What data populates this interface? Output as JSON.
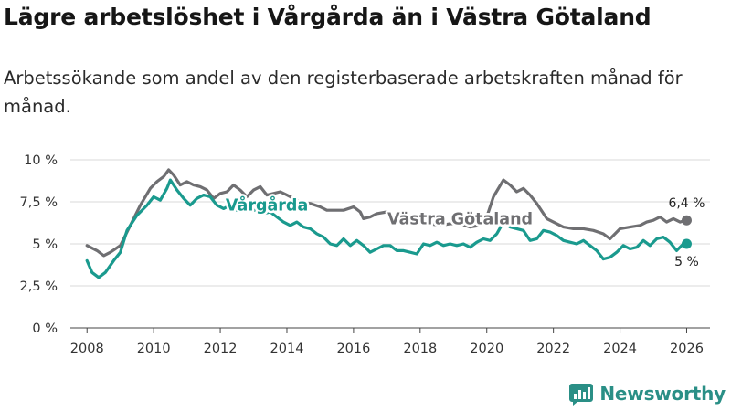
{
  "title": "Lägre arbetslöshet i Vårgårda än i Västra Götaland",
  "subtitle": "Arbetssökande som andel av den registerbaserade arbetskraften månad för månad.",
  "brand": {
    "name": "Newsworthy",
    "color": "#2a8f86"
  },
  "chart_data": {
    "type": "line",
    "ylim": [
      0,
      10
    ],
    "xlim": [
      2007.5,
      2026.7
    ],
    "yticks": [
      0,
      2.5,
      5,
      7.5,
      10
    ],
    "ytick_labels": [
      "0 %",
      "2,5 %",
      "5 %",
      "7,5 %",
      "10 %"
    ],
    "xticks": [
      2008,
      2010,
      2012,
      2014,
      2016,
      2018,
      2020,
      2022,
      2024,
      2026
    ],
    "xtick_labels": [
      "2008",
      "2010",
      "2012",
      "2014",
      "2016",
      "2018",
      "2020",
      "2022",
      "2024",
      "2026"
    ],
    "grid": true,
    "series": [
      {
        "name": "Västra Götaland",
        "color": "#6f6f72",
        "end_label": "6,4 %",
        "points": [
          [
            2008.0,
            4.9
          ],
          [
            2008.3,
            4.6
          ],
          [
            2008.5,
            4.3
          ],
          [
            2008.7,
            4.5
          ],
          [
            2009.0,
            4.9
          ],
          [
            2009.3,
            6.1
          ],
          [
            2009.6,
            7.3
          ],
          [
            2009.9,
            8.3
          ],
          [
            2010.1,
            8.7
          ],
          [
            2010.3,
            9.0
          ],
          [
            2010.45,
            9.4
          ],
          [
            2010.6,
            9.1
          ],
          [
            2010.8,
            8.5
          ],
          [
            2011.0,
            8.7
          ],
          [
            2011.2,
            8.5
          ],
          [
            2011.4,
            8.4
          ],
          [
            2011.6,
            8.2
          ],
          [
            2011.8,
            7.7
          ],
          [
            2012.0,
            8.0
          ],
          [
            2012.2,
            8.1
          ],
          [
            2012.4,
            8.5
          ],
          [
            2012.6,
            8.2
          ],
          [
            2012.8,
            7.8
          ],
          [
            2013.0,
            8.2
          ],
          [
            2013.2,
            8.4
          ],
          [
            2013.4,
            7.9
          ],
          [
            2013.6,
            8.0
          ],
          [
            2013.8,
            8.1
          ],
          [
            2014.0,
            7.9
          ],
          [
            2014.2,
            7.7
          ],
          [
            2014.4,
            7.5
          ],
          [
            2014.7,
            7.4
          ],
          [
            2015.0,
            7.2
          ],
          [
            2015.2,
            7.0
          ],
          [
            2015.4,
            7.0
          ],
          [
            2015.7,
            7.0
          ],
          [
            2016.0,
            7.2
          ],
          [
            2016.2,
            6.9
          ],
          [
            2016.3,
            6.5
          ],
          [
            2016.5,
            6.6
          ],
          [
            2016.7,
            6.8
          ],
          [
            2017.0,
            6.9
          ],
          [
            2017.2,
            6.6
          ],
          [
            2017.4,
            6.4
          ],
          [
            2017.6,
            6.3
          ],
          [
            2018.0,
            6.3
          ],
          [
            2018.3,
            6.2
          ],
          [
            2018.6,
            6.1
          ],
          [
            2018.9,
            6.2
          ],
          [
            2019.2,
            6.2
          ],
          [
            2019.5,
            6.0
          ],
          [
            2019.8,
            6.1
          ],
          [
            2020.0,
            6.6
          ],
          [
            2020.2,
            7.8
          ],
          [
            2020.5,
            8.8
          ],
          [
            2020.7,
            8.5
          ],
          [
            2020.9,
            8.1
          ],
          [
            2021.1,
            8.3
          ],
          [
            2021.3,
            7.9
          ],
          [
            2021.5,
            7.4
          ],
          [
            2021.8,
            6.5
          ],
          [
            2022.0,
            6.3
          ],
          [
            2022.3,
            6.0
          ],
          [
            2022.6,
            5.9
          ],
          [
            2022.9,
            5.9
          ],
          [
            2023.2,
            5.8
          ],
          [
            2023.5,
            5.6
          ],
          [
            2023.7,
            5.3
          ],
          [
            2024.0,
            5.9
          ],
          [
            2024.3,
            6.0
          ],
          [
            2024.6,
            6.1
          ],
          [
            2024.8,
            6.3
          ],
          [
            2025.0,
            6.4
          ],
          [
            2025.2,
            6.6
          ],
          [
            2025.4,
            6.3
          ],
          [
            2025.6,
            6.5
          ],
          [
            2025.8,
            6.3
          ],
          [
            2026.0,
            6.4
          ]
        ]
      },
      {
        "name": "Vårgårda",
        "color": "#1a9a8e",
        "end_label": "5 %",
        "points": [
          [
            2008.0,
            4.0
          ],
          [
            2008.15,
            3.3
          ],
          [
            2008.35,
            3.0
          ],
          [
            2008.55,
            3.3
          ],
          [
            2008.8,
            4.0
          ],
          [
            2009.0,
            4.5
          ],
          [
            2009.2,
            5.8
          ],
          [
            2009.5,
            6.7
          ],
          [
            2009.8,
            7.3
          ],
          [
            2010.0,
            7.8
          ],
          [
            2010.2,
            7.6
          ],
          [
            2010.4,
            8.3
          ],
          [
            2010.5,
            8.8
          ],
          [
            2010.7,
            8.2
          ],
          [
            2010.9,
            7.7
          ],
          [
            2011.1,
            7.3
          ],
          [
            2011.3,
            7.7
          ],
          [
            2011.5,
            7.9
          ],
          [
            2011.7,
            7.8
          ],
          [
            2011.9,
            7.3
          ],
          [
            2012.1,
            7.1
          ],
          [
            2012.3,
            7.3
          ],
          [
            2012.5,
            7.0
          ],
          [
            2012.7,
            7.2
          ],
          [
            2012.9,
            7.0
          ],
          [
            2013.1,
            7.0
          ],
          [
            2013.3,
            6.8
          ],
          [
            2013.5,
            6.9
          ],
          [
            2013.7,
            6.6
          ],
          [
            2013.9,
            6.3
          ],
          [
            2014.1,
            6.1
          ],
          [
            2014.3,
            6.3
          ],
          [
            2014.5,
            6.0
          ],
          [
            2014.7,
            5.9
          ],
          [
            2014.9,
            5.6
          ],
          [
            2015.1,
            5.4
          ],
          [
            2015.3,
            5.0
          ],
          [
            2015.5,
            4.9
          ],
          [
            2015.7,
            5.3
          ],
          [
            2015.9,
            4.9
          ],
          [
            2016.1,
            5.2
          ],
          [
            2016.3,
            4.9
          ],
          [
            2016.5,
            4.5
          ],
          [
            2016.7,
            4.7
          ],
          [
            2016.9,
            4.9
          ],
          [
            2017.1,
            4.9
          ],
          [
            2017.3,
            4.6
          ],
          [
            2017.5,
            4.6
          ],
          [
            2017.7,
            4.5
          ],
          [
            2017.9,
            4.4
          ],
          [
            2018.1,
            5.0
          ],
          [
            2018.3,
            4.9
          ],
          [
            2018.5,
            5.1
          ],
          [
            2018.7,
            4.9
          ],
          [
            2018.9,
            5.0
          ],
          [
            2019.1,
            4.9
          ],
          [
            2019.3,
            5.0
          ],
          [
            2019.5,
            4.8
          ],
          [
            2019.7,
            5.1
          ],
          [
            2019.9,
            5.3
          ],
          [
            2020.1,
            5.2
          ],
          [
            2020.3,
            5.6
          ],
          [
            2020.5,
            6.3
          ],
          [
            2020.7,
            6.0
          ],
          [
            2020.9,
            5.9
          ],
          [
            2021.1,
            5.8
          ],
          [
            2021.3,
            5.2
          ],
          [
            2021.5,
            5.3
          ],
          [
            2021.7,
            5.8
          ],
          [
            2021.9,
            5.7
          ],
          [
            2022.1,
            5.5
          ],
          [
            2022.3,
            5.2
          ],
          [
            2022.5,
            5.1
          ],
          [
            2022.7,
            5.0
          ],
          [
            2022.9,
            5.2
          ],
          [
            2023.1,
            4.9
          ],
          [
            2023.3,
            4.6
          ],
          [
            2023.5,
            4.1
          ],
          [
            2023.7,
            4.2
          ],
          [
            2023.9,
            4.5
          ],
          [
            2024.1,
            4.9
          ],
          [
            2024.3,
            4.7
          ],
          [
            2024.5,
            4.8
          ],
          [
            2024.7,
            5.2
          ],
          [
            2024.9,
            4.9
          ],
          [
            2025.1,
            5.3
          ],
          [
            2025.3,
            5.4
          ],
          [
            2025.5,
            5.1
          ],
          [
            2025.7,
            4.6
          ],
          [
            2025.9,
            5.0
          ],
          [
            2026.0,
            5.0
          ]
        ]
      }
    ],
    "annotations": [
      {
        "text": "Vårgårda",
        "series": "Vårgårda",
        "x": 2013.4,
        "y": 7.3
      },
      {
        "text": "Västra Götaland",
        "series": "Västra Götaland",
        "x": 2019.2,
        "y": 6.5
      }
    ]
  }
}
